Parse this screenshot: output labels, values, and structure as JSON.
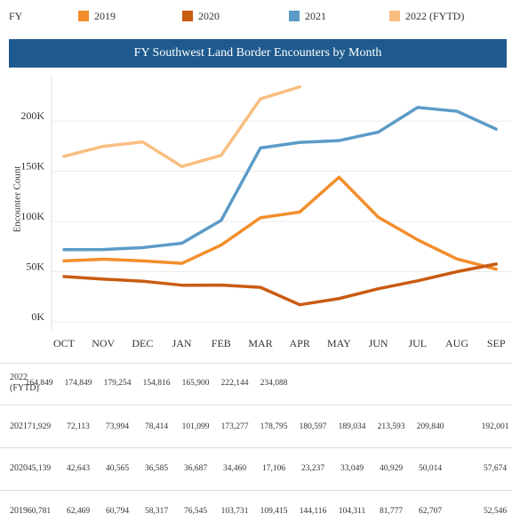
{
  "chart_data": {
    "type": "line",
    "title": "FY Southwest Land Border Encounters by Month",
    "legend_title": "FY",
    "y_label": "Encounter Count",
    "categories": [
      "OCT",
      "NOV",
      "DEC",
      "JAN",
      "FEB",
      "MAR",
      "APR",
      "MAY",
      "JUN",
      "JUL",
      "AUG",
      "SEP"
    ],
    "ylim": [
      0,
      240000
    ],
    "yticks": [
      {
        "value": 0,
        "label": "0K"
      },
      {
        "value": 50000,
        "label": "50K"
      },
      {
        "value": 100000,
        "label": "100K"
      },
      {
        "value": 150000,
        "label": "150K"
      },
      {
        "value": 200000,
        "label": "200K"
      }
    ],
    "grid": true,
    "series": [
      {
        "name": "2019",
        "color": "#f28e2b",
        "values": [
          60781,
          62469,
          60794,
          58317,
          76545,
          103731,
          109415,
          144116,
          104311,
          81777,
          62707,
          52546
        ],
        "value_labels": [
          "60,781",
          "62,469",
          "60,794",
          "58,317",
          "76,545",
          "103,731",
          "109,415",
          "144,116",
          "104,311",
          "81,777",
          "62,707",
          "52,546"
        ]
      },
      {
        "name": "2020",
        "color": "#c95b12",
        "values": [
          45139,
          42643,
          40565,
          36585,
          36687,
          34460,
          17106,
          23237,
          33049,
          40929,
          50014,
          57674
        ],
        "value_labels": [
          "45,139",
          "42,643",
          "40,565",
          "36,585",
          "36,687",
          "34,460",
          "17,106",
          "23,237",
          "33,049",
          "40,929",
          "50,014",
          "57,674"
        ]
      },
      {
        "name": "2021",
        "color": "#5b9bc8",
        "values": [
          71929,
          72113,
          73994,
          78414,
          101099,
          173277,
          178795,
          180597,
          189034,
          213593,
          209840,
          192001
        ],
        "value_labels": [
          "71,929",
          "72,113",
          "73,994",
          "78,414",
          "101,099",
          "173,277",
          "178,795",
          "180,597",
          "189,034",
          "213,593",
          "209,840",
          "192,001"
        ]
      },
      {
        "name": "2022 (FYTD)",
        "color": "#f9be80",
        "values": [
          164849,
          174849,
          179254,
          154816,
          165900,
          222144,
          234088,
          null,
          null,
          null,
          null,
          null
        ],
        "value_labels": [
          "164,849",
          "174,849",
          "179,254",
          "154,816",
          "165,900",
          "222,144",
          "234,088",
          null,
          null,
          null,
          null,
          null
        ]
      }
    ]
  }
}
